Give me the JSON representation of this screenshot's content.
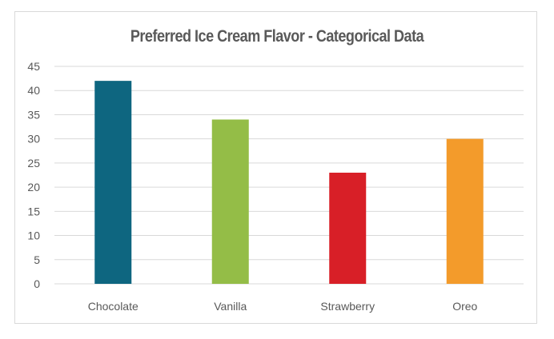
{
  "chart_data": {
    "type": "bar",
    "title": "Preferred Ice Cream Flavor - Categorical Data",
    "xlabel": "",
    "ylabel": "",
    "categories": [
      "Chocolate",
      "Vanilla",
      "Strawberry",
      "Oreo"
    ],
    "values": [
      42,
      34,
      23,
      30
    ],
    "colors": [
      "#0e6680",
      "#94bd47",
      "#d81f27",
      "#f39b2b"
    ],
    "ylim": [
      0,
      45
    ],
    "yticks": [
      0,
      5,
      10,
      15,
      20,
      25,
      30,
      35,
      40,
      45
    ],
    "grid": true,
    "legend": "none"
  }
}
